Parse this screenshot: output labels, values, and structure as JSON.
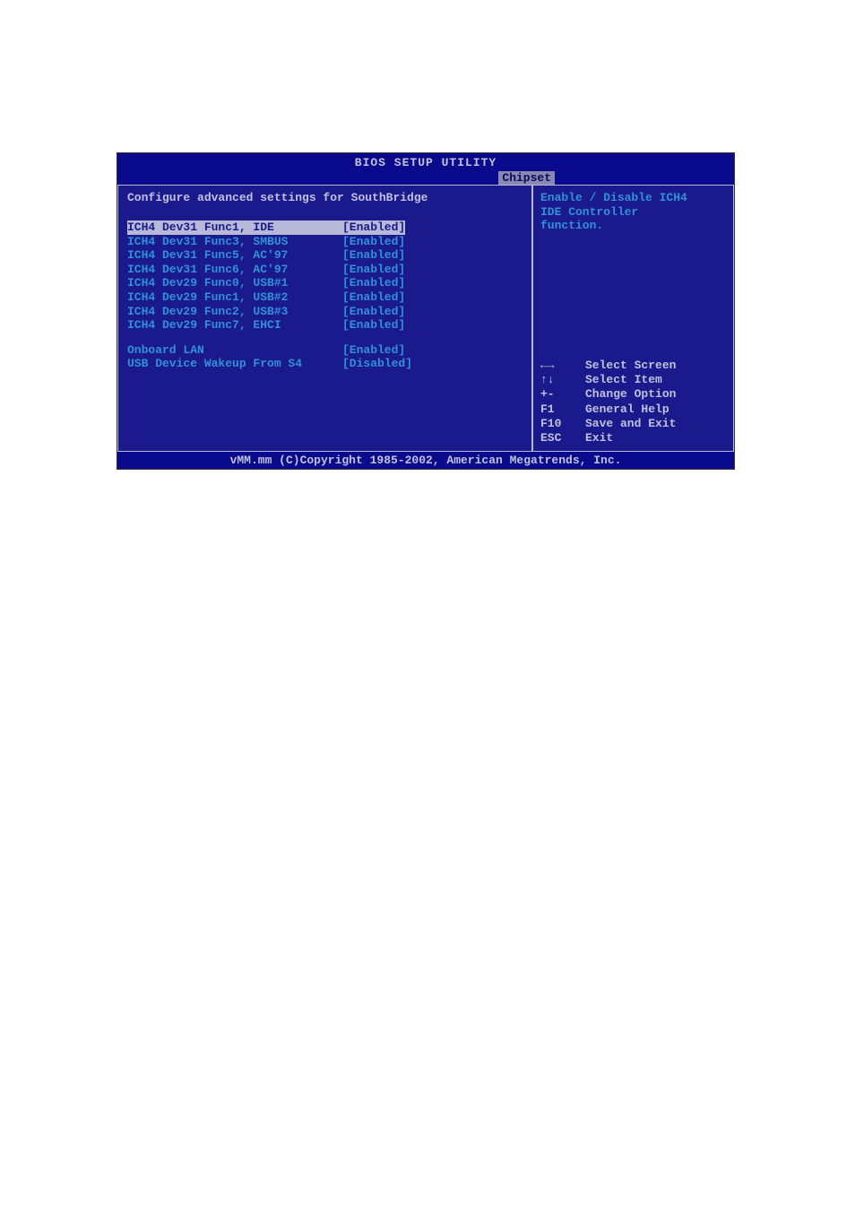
{
  "title": "BIOS SETUP UTILITY",
  "tab": "Chipset",
  "heading": "Configure advanced settings for SouthBridge",
  "settings_group1": [
    {
      "label": "ICH4 Dev31 Func1, IDE",
      "value": "[Enabled]",
      "selected": true
    },
    {
      "label": "ICH4 Dev31 Func3, SMBUS",
      "value": "[Enabled]",
      "selected": false
    },
    {
      "label": "ICH4 Dev31 Func5, AC'97",
      "value": "[Enabled]",
      "selected": false
    },
    {
      "label": "ICH4 Dev31 Func6, AC'97",
      "value": "[Enabled]",
      "selected": false
    },
    {
      "label": "ICH4 Dev29 Func0, USB#1",
      "value": "[Enabled]",
      "selected": false
    },
    {
      "label": "ICH4 Dev29 Func1, USB#2",
      "value": "[Enabled]",
      "selected": false
    },
    {
      "label": "ICH4 Dev29 Func2, USB#3",
      "value": "[Enabled]",
      "selected": false
    },
    {
      "label": "ICH4 Dev29 Func7, EHCI",
      "value": "[Enabled]",
      "selected": false
    }
  ],
  "settings_group2": [
    {
      "label": "Onboard LAN",
      "value": "[Enabled]",
      "selected": false
    },
    {
      "label": "USB Device Wakeup From S4",
      "value": "[Disabled]",
      "selected": false
    }
  ],
  "help": {
    "line1": "Enable / Disable ICH4",
    "line2": "IDE Controller",
    "line3": "function."
  },
  "nav": [
    {
      "key": "←→",
      "desc": "Select Screen"
    },
    {
      "key": "↑↓",
      "desc": "Select Item"
    },
    {
      "key": "+-",
      "desc": "Change Option"
    },
    {
      "key": "F1",
      "desc": "General Help"
    },
    {
      "key": "F10",
      "desc": "Save and Exit"
    },
    {
      "key": "ESC",
      "desc": "Exit"
    }
  ],
  "footer": "vMM.mm (C)Copyright 1985-2002, American Megatrends, Inc."
}
